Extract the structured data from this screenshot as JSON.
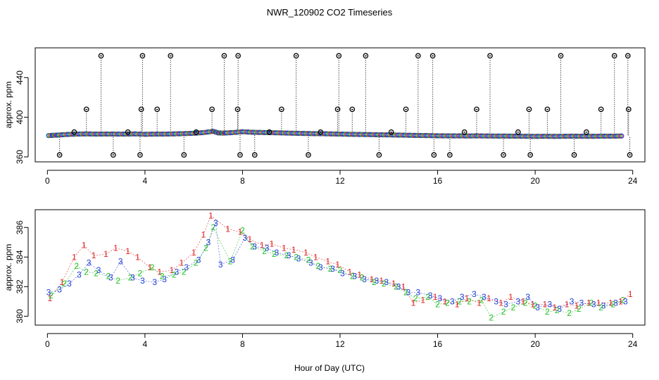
{
  "chart_data": [
    {
      "type": "scatter",
      "panel": "top",
      "title": "NWR_120902  CO2 Timeseries",
      "xlabel": "",
      "ylabel": "approx. ppm",
      "xlim": [
        -0.5,
        24.5
      ],
      "ylim": [
        355,
        470
      ],
      "x_ticks": [
        0,
        4,
        8,
        12,
        16,
        20,
        24
      ],
      "y_ticks": [
        360,
        400,
        440
      ],
      "series": [
        {
          "name": "CO2 by inlet (colored circles)",
          "x": [
            0.05,
            0.4,
            0.8,
            1.2,
            1.6,
            2.0,
            2.4,
            2.8,
            3.2,
            3.6,
            4.0,
            4.4,
            4.8,
            5.2,
            5.6,
            6.0,
            6.4,
            6.8,
            7.0,
            7.2,
            7.6,
            8.0,
            8.4,
            8.8,
            9.2,
            9.6,
            10.0,
            10.4,
            10.8,
            11.2,
            11.6,
            12.0,
            12.4,
            12.8,
            13.2,
            13.6,
            14.0,
            14.4,
            14.8,
            15.2,
            15.6,
            16.0,
            16.4,
            16.8,
            17.2,
            17.6,
            18.0,
            18.4,
            18.8,
            19.2,
            19.6,
            20.0,
            20.4,
            20.8,
            21.2,
            21.6,
            22.0,
            22.4,
            22.8,
            23.2,
            23.6
          ],
          "values": [
            381.5,
            382.0,
            382.6,
            383.0,
            383.2,
            383.0,
            383.1,
            383.0,
            383.0,
            383.2,
            382.8,
            383.0,
            383.0,
            383.2,
            383.5,
            383.8,
            384.5,
            385.8,
            384.2,
            384.0,
            384.5,
            385.4,
            384.8,
            384.6,
            384.4,
            384.2,
            383.9,
            383.7,
            383.5,
            383.4,
            383.2,
            383.0,
            382.8,
            382.6,
            382.5,
            382.3,
            382.2,
            382.0,
            381.8,
            381.6,
            381.5,
            381.3,
            381.2,
            381.2,
            381.1,
            381.2,
            381.1,
            381.0,
            381.0,
            380.9,
            380.8,
            380.7,
            380.8,
            380.7,
            380.8,
            380.9,
            380.8,
            380.8,
            380.9,
            380.9,
            381.1
          ]
        },
        {
          "name": "flagged values (black circles)",
          "x": [
            0.5,
            1.1,
            1.6,
            2.2,
            2.7,
            3.3,
            3.8,
            3.85,
            3.9,
            4.5,
            5.05,
            5.6,
            6.1,
            6.75,
            7.25,
            7.8,
            7.82,
            7.9,
            8.5,
            9.1,
            9.6,
            10.2,
            10.7,
            11.2,
            11.9,
            11.95,
            12.5,
            13.05,
            13.6,
            14.1,
            14.7,
            15.2,
            15.8,
            15.85,
            16.5,
            17.1,
            17.6,
            18.15,
            18.7,
            19.3,
            19.75,
            19.8,
            20.5,
            21.05,
            21.6,
            22.1,
            22.7,
            23.25,
            23.8,
            23.83,
            23.88
          ],
          "values": [
            362,
            385,
            408,
            462,
            362,
            385,
            362,
            408,
            462,
            408,
            462,
            362,
            385,
            408,
            462,
            408,
            462,
            362,
            362,
            385,
            408,
            462,
            362,
            385,
            408,
            462,
            408,
            462,
            362,
            385,
            408,
            462,
            462,
            362,
            362,
            385,
            408,
            462,
            362,
            385,
            408,
            362,
            408,
            462,
            362,
            385,
            408,
            462,
            462,
            408,
            362
          ]
        }
      ]
    },
    {
      "type": "scatter",
      "panel": "bottom",
      "title": "",
      "xlabel": "Hour of Day (UTC)",
      "ylabel": "approx. ppm",
      "xlim": [
        -0.5,
        24.5
      ],
      "ylim": [
        379.4,
        387.2
      ],
      "x_ticks": [
        0,
        4,
        8,
        12,
        16,
        20,
        24
      ],
      "y_ticks": [
        380,
        382,
        384,
        386
      ],
      "series": [
        {
          "name": "1",
          "x": [
            0.1,
            0.6,
            1.1,
            1.5,
            1.9,
            2.4,
            2.8,
            3.3,
            3.7,
            4.2,
            4.6,
            5.1,
            5.5,
            6.0,
            6.4,
            6.7,
            7.4,
            7.9,
            8.3,
            8.8,
            9.2,
            9.7,
            10.1,
            10.6,
            11.0,
            11.5,
            11.9,
            12.4,
            12.8,
            13.3,
            13.7,
            14.2,
            14.6,
            15.0,
            15.4,
            15.9,
            16.3,
            16.8,
            17.2,
            17.7,
            18.1,
            18.6,
            19.0,
            19.5,
            19.9,
            20.4,
            20.8,
            21.3,
            21.7,
            22.2,
            22.6,
            23.1,
            23.5,
            23.9
          ],
          "values": [
            381.2,
            382.3,
            384.0,
            384.8,
            384.1,
            384.2,
            384.6,
            384.4,
            384.0,
            383.3,
            383.0,
            383.1,
            383.6,
            384.3,
            385.5,
            386.8,
            385.9,
            385.7,
            385.2,
            384.8,
            384.9,
            384.6,
            384.5,
            384.3,
            384.0,
            383.7,
            383.5,
            383.0,
            382.8,
            382.5,
            382.4,
            382.2,
            382.0,
            380.9,
            381.1,
            381.3,
            381.0,
            380.8,
            381.2,
            380.9,
            381.2,
            380.9,
            381.3,
            381.0,
            380.8,
            380.8,
            380.6,
            380.8,
            380.7,
            380.9,
            380.9,
            380.9,
            381.0,
            381.5
          ]
        },
        {
          "name": "2",
          "x": [
            0.15,
            0.7,
            1.2,
            1.6,
            2.0,
            2.5,
            2.9,
            3.4,
            3.8,
            4.3,
            4.7,
            5.2,
            5.6,
            6.1,
            6.5,
            6.8,
            7.5,
            8.0,
            8.4,
            8.9,
            9.3,
            9.8,
            10.2,
            10.7,
            11.1,
            11.6,
            12.0,
            12.5,
            12.9,
            13.4,
            13.8,
            14.3,
            14.7,
            15.1,
            15.6,
            16.0,
            16.4,
            16.9,
            17.3,
            17.8,
            18.2,
            18.7,
            19.1,
            19.6,
            20.0,
            20.5,
            20.9,
            21.4,
            21.8,
            22.3,
            22.7,
            23.2,
            23.6
          ],
          "values": [
            381.4,
            382.2,
            383.4,
            383.0,
            382.9,
            382.7,
            382.4,
            382.6,
            382.9,
            383.3,
            382.7,
            382.8,
            383.0,
            383.6,
            384.6,
            386.0,
            383.7,
            385.8,
            384.7,
            384.4,
            384.2,
            384.1,
            384.0,
            383.8,
            383.4,
            383.2,
            383.1,
            382.7,
            382.6,
            382.3,
            382.2,
            382.0,
            381.6,
            381.2,
            381.3,
            380.8,
            380.9,
            381.0,
            381.0,
            381.1,
            379.9,
            380.3,
            380.6,
            380.9,
            380.7,
            380.3,
            380.4,
            380.2,
            380.5,
            380.9,
            380.6,
            380.8,
            381.1
          ]
        },
        {
          "name": "3",
          "x": [
            0.05,
            0.5,
            0.9,
            1.3,
            1.7,
            2.1,
            2.6,
            3.0,
            3.5,
            3.9,
            4.4,
            4.8,
            5.3,
            5.7,
            6.2,
            6.6,
            6.9,
            7.1,
            7.6,
            8.1,
            8.5,
            9.0,
            9.4,
            9.9,
            10.3,
            10.8,
            11.2,
            11.7,
            12.1,
            12.6,
            13.0,
            13.5,
            13.9,
            14.4,
            14.8,
            15.2,
            15.7,
            16.1,
            16.6,
            17.0,
            17.5,
            17.9,
            18.4,
            18.8,
            19.3,
            19.7,
            20.1,
            20.6,
            21.0,
            21.5,
            21.9,
            22.4,
            22.8,
            23.3,
            23.7
          ],
          "values": [
            381.6,
            381.8,
            382.2,
            382.8,
            383.6,
            383.1,
            382.6,
            383.7,
            382.6,
            382.4,
            382.3,
            382.5,
            383.0,
            383.3,
            383.8,
            385.0,
            386.3,
            383.5,
            383.8,
            385.3,
            384.7,
            384.6,
            384.3,
            384.1,
            383.9,
            383.6,
            383.3,
            383.2,
            382.9,
            382.7,
            382.5,
            382.4,
            382.3,
            382.0,
            381.6,
            381.6,
            381.4,
            381.2,
            381.0,
            381.3,
            381.5,
            381.3,
            381.0,
            380.8,
            381.0,
            381.3,
            380.6,
            380.8,
            380.5,
            381.0,
            380.9,
            380.8,
            380.7,
            380.9,
            381.0
          ]
        }
      ]
    }
  ]
}
